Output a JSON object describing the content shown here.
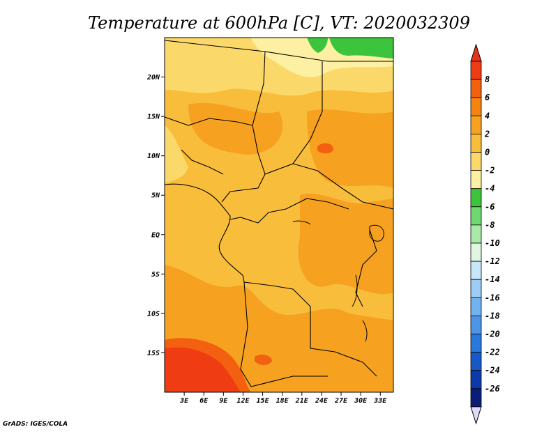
{
  "figure": {
    "title": "Temperature at 600hPa [C], VT: 2020032309",
    "credit": "GrADS: IGES/COLA"
  },
  "map": {
    "lat_ticks": [
      "20N",
      "15N",
      "10N",
      "5N",
      "EQ",
      "5S",
      "10S",
      "15S"
    ],
    "lon_ticks": [
      "3E",
      "6E",
      "9E",
      "12E",
      "15E",
      "18E",
      "21E",
      "24E",
      "27E",
      "30E",
      "33E"
    ],
    "lat_range": [
      -20,
      25
    ],
    "lon_range": [
      0,
      35
    ]
  },
  "colorbar": {
    "labels": [
      "8",
      "6",
      "4",
      "2",
      "0",
      "-2",
      "-4",
      "-6",
      "-8",
      "-10",
      "-12",
      "-14",
      "-16",
      "-18",
      "-20",
      "-22",
      "-24",
      "-26"
    ],
    "colors": [
      "#f03c12",
      "#f26010",
      "#f4840f",
      "#f6a220",
      "#f9bd3c",
      "#fbd86a",
      "#fdf0a2",
      "#3cc43c",
      "#70d870",
      "#a8eba8",
      "#e0f6e0",
      "#c8e6fb",
      "#9dcdf6",
      "#72b2ef",
      "#4d96e6",
      "#2b78dc",
      "#1758c8",
      "#0c3aa8",
      "#0a1e78"
    ],
    "top_arrow_color": "#e2341a",
    "bottom_arrow_color": "#dcdcfa"
  }
}
